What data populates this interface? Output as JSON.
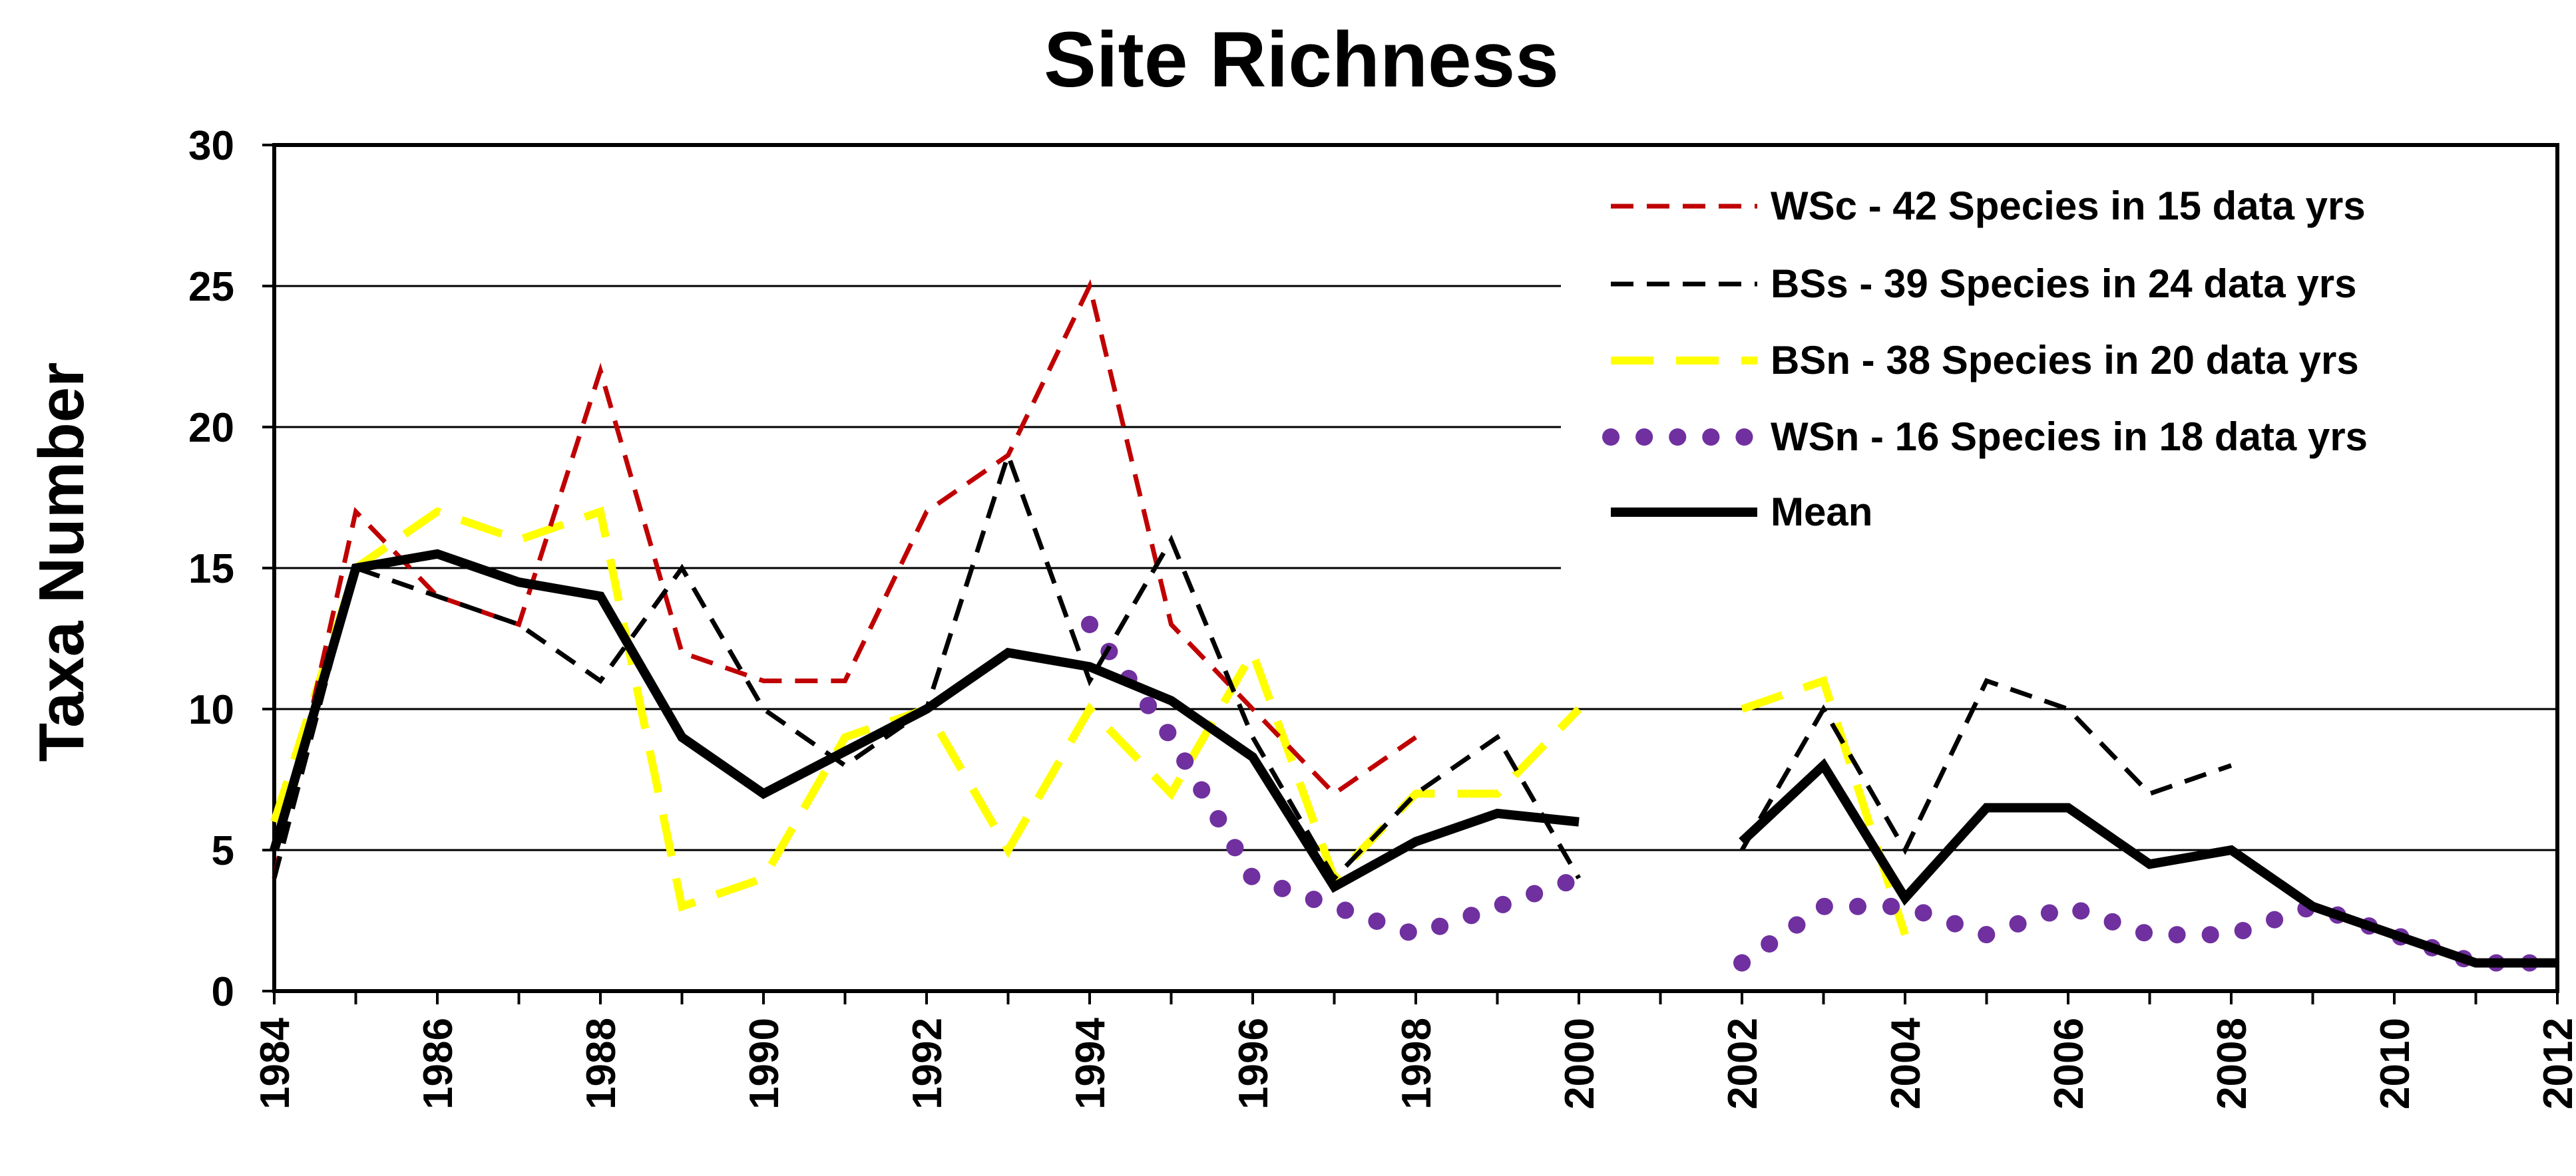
{
  "chart_data": {
    "type": "line",
    "title": "Site Richness",
    "xlabel": "",
    "ylabel": "Taxa Number",
    "xlim": [
      1984,
      2012
    ],
    "ylim": [
      0,
      30
    ],
    "yticks": [
      0,
      5,
      10,
      15,
      20,
      25,
      30
    ],
    "xticks": [
      1984,
      1986,
      1988,
      1990,
      1992,
      1994,
      1996,
      1998,
      2000,
      2002,
      2004,
      2006,
      2008,
      2010,
      2012
    ],
    "grid": "horizontal",
    "legend_position": "top-right",
    "series": [
      {
        "name": "WSc - 42 Species in 15 data yrs",
        "color": "#c00000",
        "style": "dashed",
        "x": [
          1984,
          1985,
          1986,
          1987,
          1988,
          1989,
          1990,
          1991,
          1992,
          1993,
          1994,
          1995,
          1996,
          1997,
          1998
        ],
        "y": [
          4,
          17,
          14,
          13,
          22,
          12,
          11,
          11,
          17,
          19,
          25,
          13,
          10,
          7,
          9
        ]
      },
      {
        "name": "BSs - 39 Species in 24 data yrs",
        "color": "#000000",
        "style": "dashed",
        "x": [
          1984,
          1985,
          1986,
          1987,
          1988,
          1989,
          1990,
          1991,
          1992,
          1993,
          1994,
          1995,
          1996,
          1997,
          1998,
          1999,
          2000,
          null,
          2002,
          2003,
          2004,
          2005,
          2006,
          2007,
          2008
        ],
        "y": [
          4,
          15,
          14,
          13,
          11,
          15,
          10,
          8,
          10,
          19,
          11,
          16,
          9,
          4,
          7,
          9,
          4,
          null,
          5,
          10,
          5,
          11,
          10,
          7,
          8
        ]
      },
      {
        "name": "BSn - 38 Species in 20 data yrs",
        "color": "#ffff00",
        "style": "long-dashed",
        "x": [
          1984,
          1985,
          1986,
          1987,
          1988,
          1989,
          1990,
          1991,
          1992,
          1993,
          1994,
          1995,
          1996,
          1997,
          1998,
          1999,
          2000,
          null,
          2002,
          2003,
          2004
        ],
        "y": [
          6,
          15,
          17,
          16,
          17,
          3,
          4,
          9,
          10,
          5,
          10,
          7,
          12,
          4,
          7,
          7,
          10,
          null,
          10,
          11,
          2
        ]
      },
      {
        "name": "WSn - 16 Species in 18 data yrs",
        "color": "#7030a0",
        "style": "dotted",
        "x": [
          1994,
          1995,
          1996,
          1997,
          1998,
          1999,
          2000,
          null,
          2002,
          2003,
          2004,
          2005,
          2006,
          2007,
          2008,
          2009,
          2010,
          2011,
          2012
        ],
        "y": [
          13,
          9,
          4,
          3,
          2,
          3,
          4,
          null,
          1,
          3,
          3,
          2,
          3,
          2,
          2,
          3,
          2,
          1,
          1
        ]
      },
      {
        "name": "Mean",
        "color": "#000000",
        "style": "solid",
        "x": [
          1984,
          1985,
          1986,
          1987,
          1988,
          1989,
          1990,
          1991,
          1992,
          1993,
          1994,
          1995,
          1996,
          1997,
          1998,
          1999,
          2000,
          null,
          2002,
          2003,
          2004,
          2005,
          2006,
          2007,
          2008,
          2009,
          2010,
          2011,
          2012
        ],
        "y": [
          5,
          15,
          15.5,
          14.5,
          14,
          9,
          7,
          8.5,
          10,
          12,
          11.5,
          10.3,
          8.3,
          3.7,
          5.3,
          6.3,
          6,
          null,
          5.3,
          8,
          3.3,
          6.5,
          6.5,
          4.5,
          5,
          3,
          2,
          1,
          1
        ]
      }
    ]
  }
}
